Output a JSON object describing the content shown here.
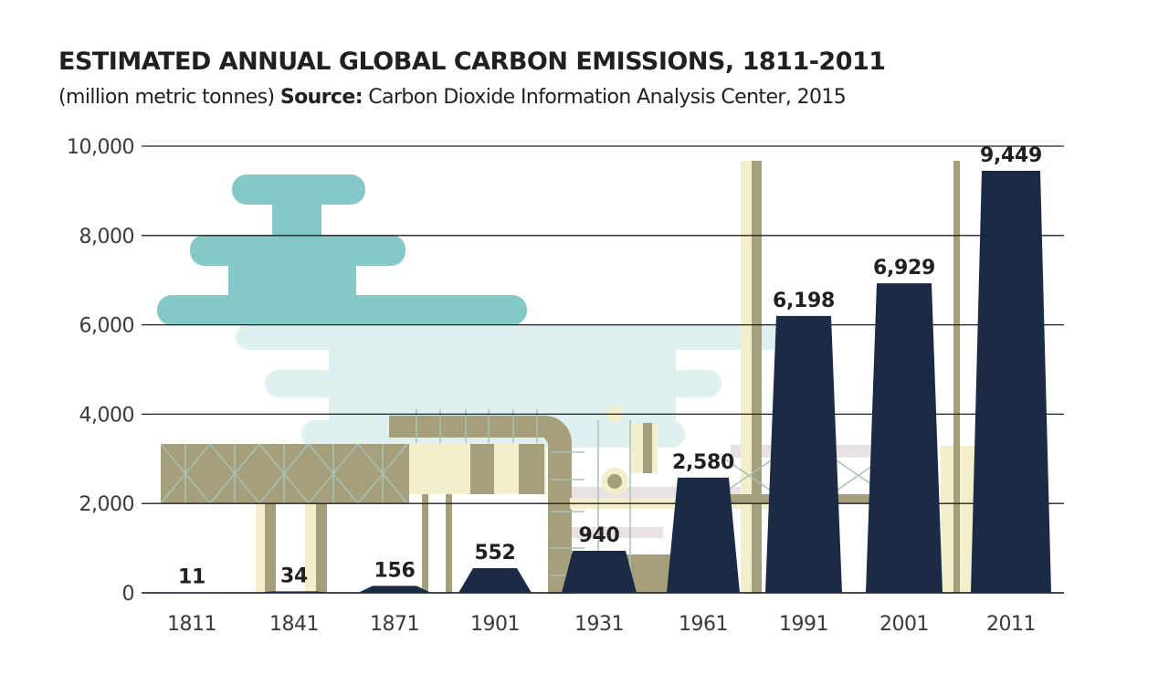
{
  "header": {
    "title": "ESTIMATED ANNUAL GLOBAL CARBON EMISSIONS, 1811-2011",
    "subtitle_prefix": "(million metric tonnes)",
    "subtitle_source_label": "Source:",
    "subtitle_source": "Carbon Dioxide Information Analysis Center, 2015"
  },
  "colors": {
    "bar": "#1b2b45",
    "gridline": "#231f20",
    "cloud_dark": "#84c9c8",
    "cloud_light": "#dff0f0",
    "factory_olive": "#a59f7c",
    "factory_cream": "#f3eecb",
    "factory_grey": "#e8e2e2",
    "truss_line": "#a9c2b5"
  },
  "chart_data": {
    "type": "bar",
    "title": "ESTIMATED ANNUAL GLOBAL CARBON EMISSIONS, 1811-2011",
    "subtitle": "(million metric tonnes) Source: Carbon Dioxide Information Analysis Center, 2015",
    "xlabel": "",
    "ylabel": "",
    "categories": [
      "1811",
      "1841",
      "1871",
      "1901",
      "1931",
      "1961",
      "1991",
      "2001",
      "2011"
    ],
    "values": [
      11,
      34,
      156,
      552,
      940,
      2580,
      6198,
      6929,
      9449
    ],
    "value_labels": [
      "11",
      "34",
      "156",
      "552",
      "940",
      "2,580",
      "6,198",
      "6,929",
      "9,449"
    ],
    "ylim": [
      0,
      10000
    ],
    "yticks": [
      0,
      2000,
      4000,
      6000,
      8000,
      10000
    ],
    "ytick_labels": [
      "0",
      "2,000",
      "4,000",
      "6,000",
      "8,000",
      "10,000"
    ],
    "grid": true,
    "bar_shape": "trapezoid (smokestack)",
    "legend": "none"
  }
}
